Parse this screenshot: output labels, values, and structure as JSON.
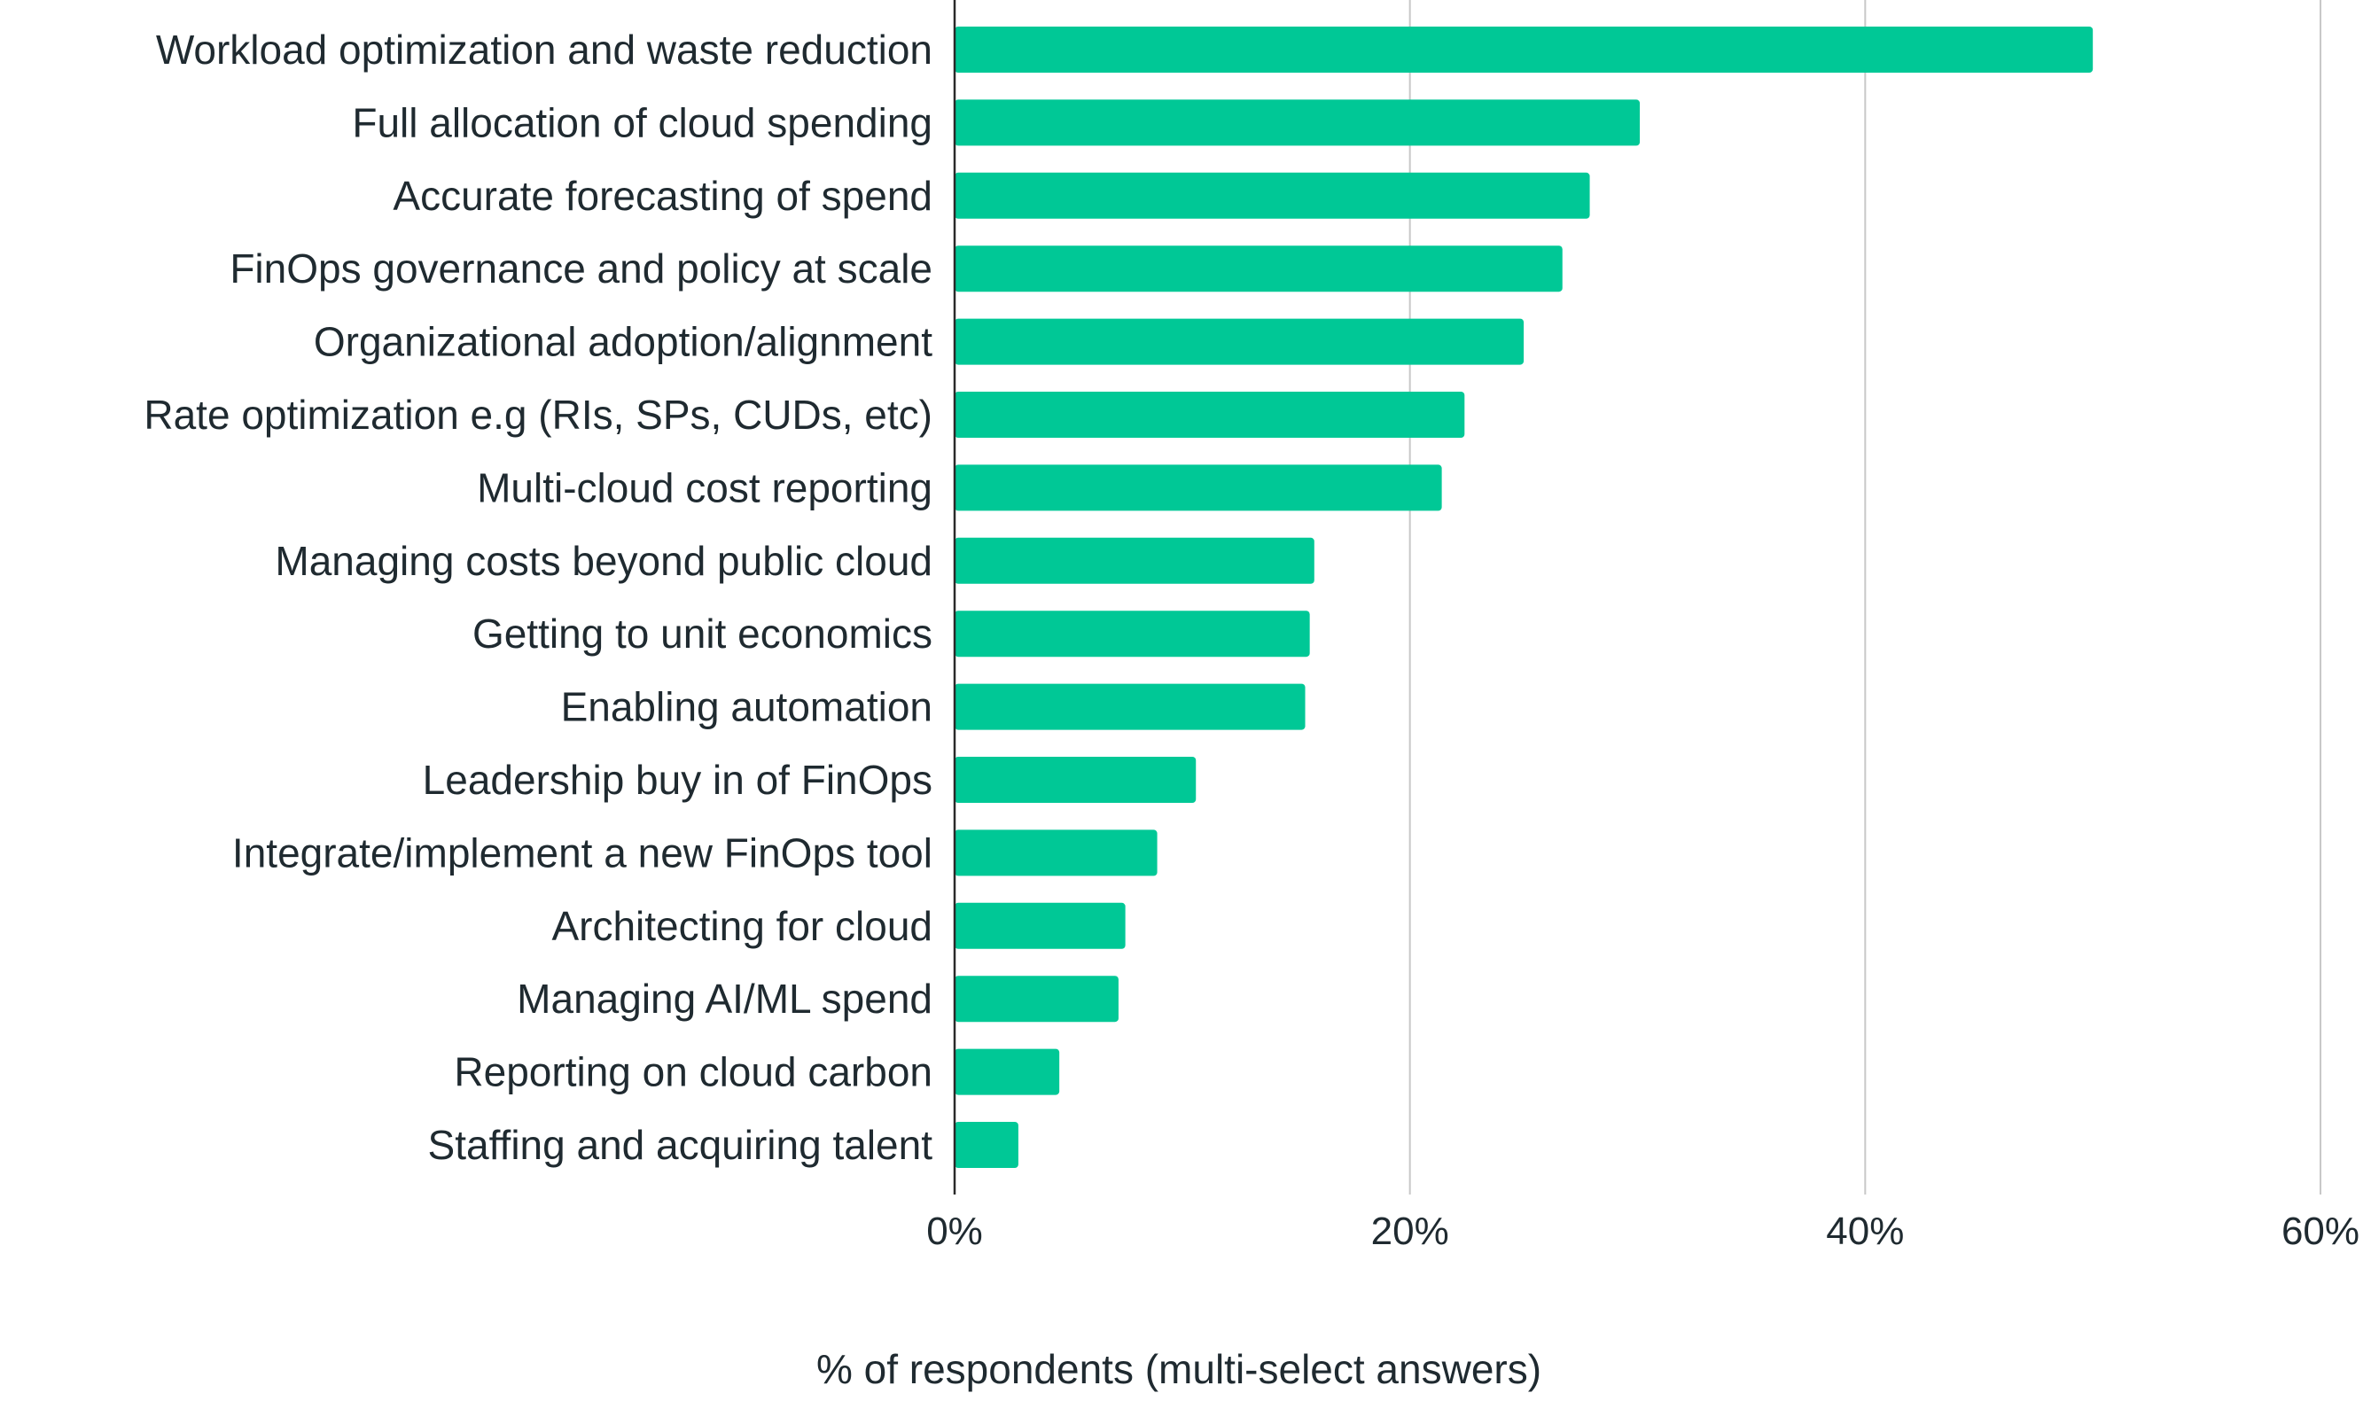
{
  "chart_data": {
    "type": "bar",
    "orientation": "horizontal",
    "categories": [
      "Workload optimization and waste reduction",
      "Full allocation of cloud spending",
      "Accurate forecasting of spend",
      "FinOps governance and policy at scale",
      "Organizational adoption/alignment",
      "Rate optimization e.g (RIs, SPs, CUDs, etc)",
      "Multi-cloud cost reporting",
      "Managing costs beyond public cloud",
      "Getting to unit economics",
      "Enabling automation",
      "Leadership buy in of FinOps",
      "Integrate/implement a new FinOps tool",
      "Architecting for cloud",
      "Managing AI/ML spend",
      "Reporting on cloud carbon",
      "Staffing and acquiring talent"
    ],
    "values": [
      50.0,
      30.1,
      27.9,
      26.7,
      25.0,
      22.4,
      21.4,
      15.8,
      15.6,
      15.4,
      10.6,
      8.9,
      7.5,
      7.2,
      4.6,
      2.8
    ],
    "xlim": [
      0,
      60
    ],
    "xticks": [
      0,
      20,
      40,
      60
    ],
    "xtick_labels": [
      "0%",
      "20%",
      "40%",
      "60%"
    ],
    "xlabel": "% of respondents (multi-select answers)",
    "ylabel": "",
    "title": "",
    "grid": "vertical",
    "legend": "none",
    "bar_color": "#00c896",
    "gridline_color": "#c8c8c8",
    "text_color": "#1f2a30"
  }
}
